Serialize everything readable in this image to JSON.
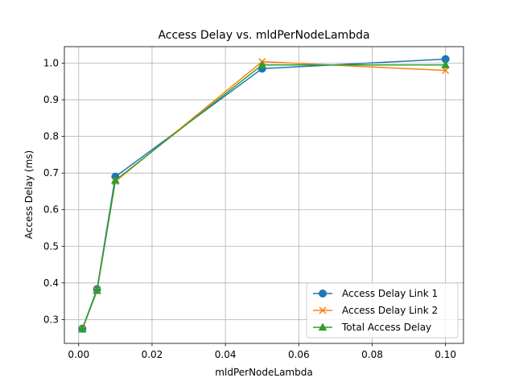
{
  "chart_data": {
    "type": "line",
    "title": "Access Delay vs. mldPerNodeLambda",
    "xlabel": "mldPerNodeLambda",
    "ylabel": "Access Delay (ms)",
    "xlim": [
      -0.0039,
      0.1049
    ],
    "ylim": [
      0.235,
      1.045
    ],
    "x_ticks": [
      0.0,
      0.02,
      0.04,
      0.06,
      0.08,
      0.1
    ],
    "x_tick_labels": [
      "0.00",
      "0.02",
      "0.04",
      "0.06",
      "0.08",
      "0.10"
    ],
    "y_ticks": [
      0.3,
      0.4,
      0.5,
      0.6,
      0.7,
      0.8,
      0.9,
      1.0
    ],
    "y_tick_labels": [
      "0.3",
      "0.4",
      "0.5",
      "0.6",
      "0.7",
      "0.8",
      "0.9",
      "1.0"
    ],
    "grid": true,
    "legend_position": "lower-right",
    "x": [
      0.001,
      0.005,
      0.01,
      0.05,
      0.1
    ],
    "series": [
      {
        "name": "Access Delay Link 1",
        "values": [
          0.275,
          0.383,
          0.69,
          0.985,
          1.011
        ],
        "color": "#1f77b4",
        "marker": "circle"
      },
      {
        "name": "Access Delay Link 2",
        "values": [
          0.274,
          0.379,
          0.677,
          1.004,
          0.98
        ],
        "color": "#ff7f0e",
        "marker": "x"
      },
      {
        "name": "Total Access Delay",
        "values": [
          0.274,
          0.379,
          0.68,
          0.995,
          0.995
        ],
        "color": "#2ca02c",
        "marker": "triangle"
      }
    ]
  }
}
